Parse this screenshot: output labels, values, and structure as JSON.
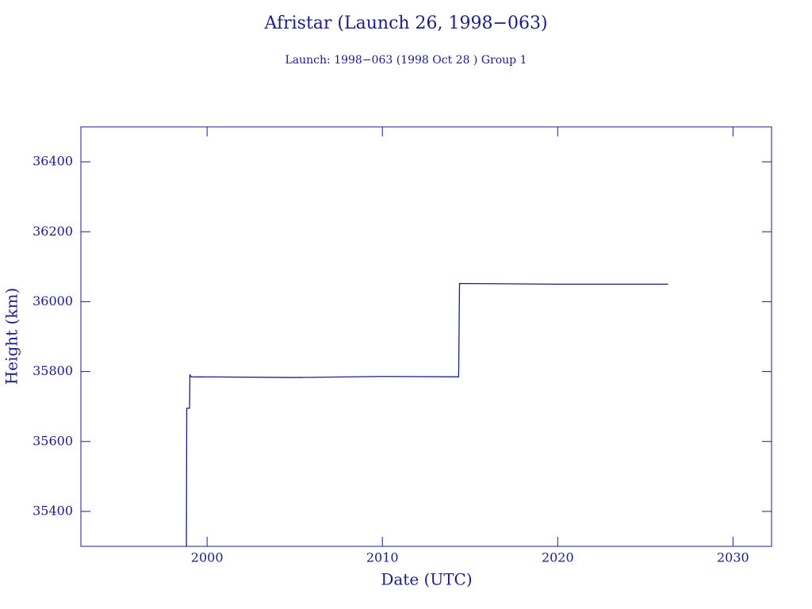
{
  "chart_data": {
    "type": "line",
    "title": "Afristar (Launch 26, 1998−063)",
    "subtitle": "Launch: 1998−063  (1998 Oct 28 )  Group 1",
    "x_label": "Date (UTC)",
    "y_label": "Height (km)",
    "color": "#1c1c8c",
    "x": [
      1998.82,
      1998.84,
      1999.0,
      1999.02,
      1999.1,
      2005,
      2010,
      2014.35,
      2014.4,
      2020,
      2026.3
    ],
    "values": [
      35300,
      35695,
      35695,
      35790,
      35785,
      35783,
      35786,
      35785,
      36052,
      36050,
      36050
    ],
    "xlim": [
      1992.8,
      2032.2
    ],
    "xticks": [
      2000,
      2010,
      2020,
      2030
    ],
    "ylim": [
      35300,
      36500
    ],
    "yticks": [
      35400,
      35600,
      35800,
      36000,
      36200,
      36400
    ]
  }
}
